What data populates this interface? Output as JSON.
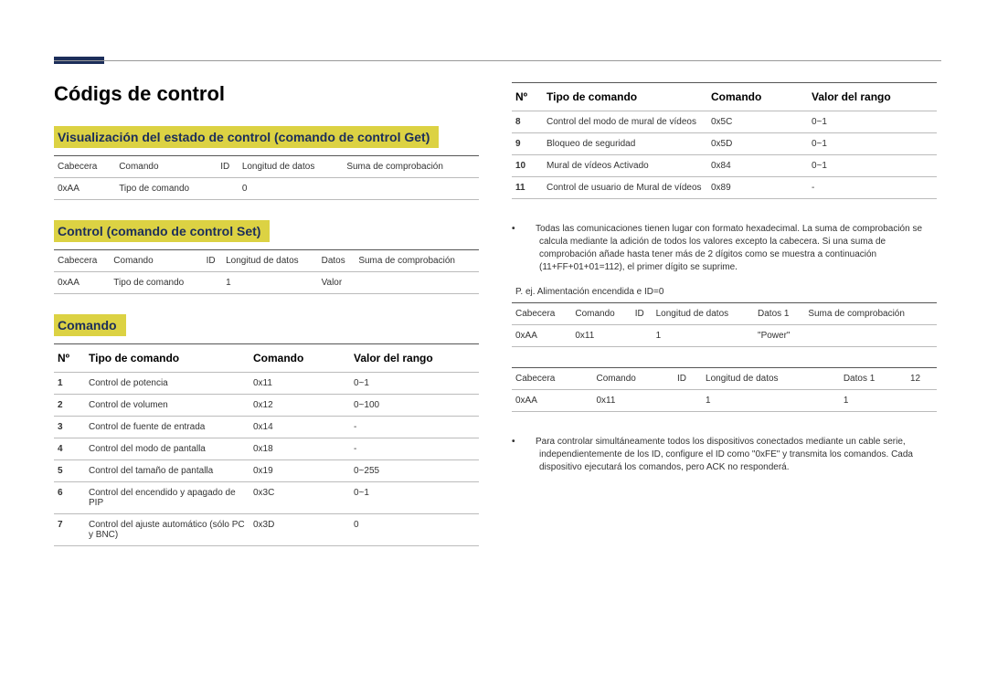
{
  "page_title": "Códigs de control",
  "section1": {
    "heading": "Visualización del estado de control (comando de control Get)",
    "headers": [
      "Cabecera",
      "Comando",
      "ID",
      "Longitud de datos",
      "Suma de comprobación"
    ],
    "row": [
      "0xAA",
      "Tipo de comando",
      "",
      "0",
      ""
    ]
  },
  "section2": {
    "heading": "Control (comando de control Set)",
    "headers": [
      "Cabecera",
      "Comando",
      "ID",
      "Longitud de datos",
      "Datos",
      "Suma de comprobación"
    ],
    "row": [
      "0xAA",
      "Tipo de comando",
      "",
      "1",
      "Valor",
      ""
    ]
  },
  "section3": {
    "heading": "Comando",
    "headers": [
      "Nº",
      "Tipo de comando",
      "Comando",
      "Valor del rango"
    ],
    "rows_left": [
      [
        "1",
        "Control de potencia",
        "0x11",
        "0~1"
      ],
      [
        "2",
        "Control de volumen",
        "0x12",
        "0~100"
      ],
      [
        "3",
        "Control de fuente de entrada",
        "0x14",
        "-"
      ],
      [
        "4",
        "Control del modo de pantalla",
        "0x18",
        "-"
      ],
      [
        "5",
        "Control del tamaño de pantalla",
        "0x19",
        "0~255"
      ],
      [
        "6",
        "Control del encendido y apagado de PIP",
        "0x3C",
        "0~1"
      ],
      [
        "7",
        "Control del ajuste automático (sólo PC y BNC)",
        "0x3D",
        "0"
      ]
    ],
    "rows_right": [
      [
        "8",
        "Control del modo de mural de vídeos",
        "0x5C",
        "0~1"
      ],
      [
        "9",
        "Bloqueo de seguridad",
        "0x5D",
        "0~1"
      ],
      [
        "10",
        "Mural de vídeos Activado",
        "0x84",
        "0~1"
      ],
      [
        "11",
        "Control de usuario de Mural de vídeos",
        "0x89",
        "-"
      ]
    ]
  },
  "note1_tag": "•",
  "note1": "Todas las comunicaciones tienen lugar con formato hexadecimal. La suma de comprobación se calcula mediante la adición de todos los valores excepto la cabecera. Si una suma de comprobación añade hasta tener más de 2 dígitos como se muestra a continuación (11+FF+01+01=112), el primer dígito se suprime.",
  "example": "P. ej. Alimentación encendida e ID=0",
  "tableA": {
    "headers": [
      "Cabecera",
      "Comando",
      "ID",
      "Longitud de datos",
      "Datos 1",
      "Suma de comprobación"
    ],
    "row": [
      "0xAA",
      "0x11",
      "",
      "1",
      "\"Power\"",
      ""
    ]
  },
  "tableB": {
    "headers": [
      "Cabecera",
      "Comando",
      "ID",
      "Longitud de datos",
      "Datos 1",
      "12"
    ],
    "row": [
      "0xAA",
      "0x11",
      "",
      "1",
      "1",
      ""
    ]
  },
  "note2_tag": "•",
  "note2": "Para controlar simultáneamente todos los dispositivos conectados mediante un cable serie, independientemente de los ID, configure el ID como \"0xFE\" y transmita los comandos. Cada dispositivo ejecutará los comandos, pero ACK no responderá."
}
